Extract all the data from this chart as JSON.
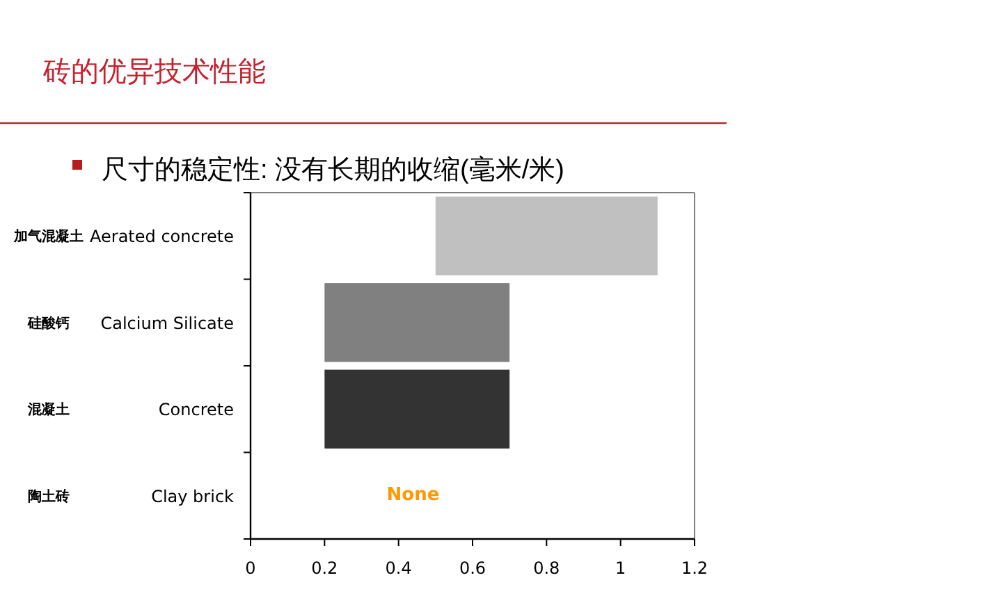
{
  "chart_data": {
    "type": "bar",
    "orientation": "horizontal",
    "title": "砖的优异技术性能",
    "subtitle": "尺寸的稳定性: 没有长期的收缩(毫米/米)",
    "categories": [
      "Aerated concrete",
      "Calcium Silicate",
      "Concrete",
      "Clay brick"
    ],
    "y2_categories": [
      "加气混凝土",
      "硅酸钙",
      "混凝土",
      "陶土砖"
    ],
    "base": [
      0.5,
      0.2,
      0.2,
      null
    ],
    "values": [
      0.6,
      0.5,
      0.5,
      null
    ],
    "colors": [
      "#c0c0c0",
      "#808080",
      "#333333",
      null
    ],
    "xlim": [
      0,
      1.2
    ],
    "xticks": [
      0,
      0.2,
      0.4,
      0.6,
      0.8,
      1,
      1.2
    ],
    "annotations": [
      "None"
    ]
  }
}
